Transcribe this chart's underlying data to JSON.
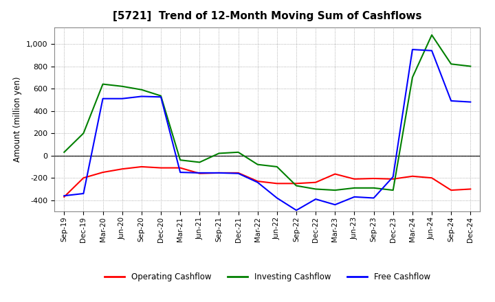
{
  "title": "[5721]  Trend of 12-Month Moving Sum of Cashflows",
  "ylabel": "Amount (million yen)",
  "background_color": "#ffffff",
  "plot_bg_color": "#ffffff",
  "grid_color": "#999999",
  "xlabels": [
    "Sep-19",
    "Dec-19",
    "Mar-20",
    "Jun-20",
    "Sep-20",
    "Dec-20",
    "Mar-21",
    "Jun-21",
    "Sep-21",
    "Dec-21",
    "Mar-22",
    "Jun-22",
    "Sep-22",
    "Dec-22",
    "Mar-23",
    "Jun-23",
    "Sep-23",
    "Dec-23",
    "Mar-24",
    "Jun-24",
    "Sep-24",
    "Dec-24"
  ],
  "operating": [
    -370,
    -200,
    -150,
    -120,
    -100,
    -110,
    -110,
    -160,
    -155,
    -155,
    -230,
    -250,
    -250,
    -240,
    -165,
    -210,
    -205,
    -210,
    -185,
    -200,
    -310,
    -300
  ],
  "investing": [
    30,
    200,
    640,
    620,
    590,
    535,
    -40,
    -60,
    20,
    30,
    -80,
    -100,
    -270,
    -300,
    -310,
    -290,
    -290,
    -310,
    700,
    1080,
    820,
    800
  ],
  "free": [
    -360,
    -340,
    510,
    510,
    530,
    525,
    -150,
    -155,
    -155,
    -160,
    -240,
    -380,
    -490,
    -390,
    -440,
    -370,
    -380,
    -190,
    950,
    940,
    490,
    480
  ],
  "ylim": [
    -500,
    1150
  ],
  "yticks": [
    -400,
    -200,
    0,
    200,
    400,
    600,
    800,
    1000
  ],
  "line_colors": {
    "operating": "#ff0000",
    "investing": "#008000",
    "free": "#0000ff"
  },
  "legend_labels": [
    "Operating Cashflow",
    "Investing Cashflow",
    "Free Cashflow"
  ]
}
